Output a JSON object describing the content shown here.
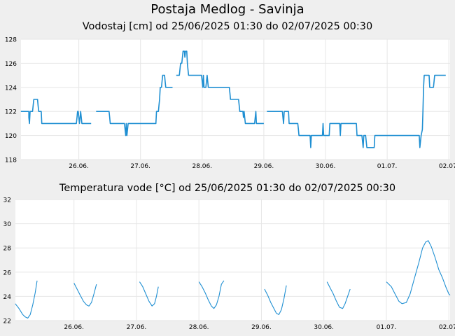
{
  "page": {
    "title": "Postaja Medlog - Savinja"
  },
  "chart_data": [
    {
      "type": "line",
      "title": "Vodostaj [cm] od 25/06/2025 01:30 do 02/07/2025 00:30",
      "xlabel": "",
      "ylabel": "",
      "x_tick_labels": [
        "26.06.",
        "27.06.",
        "28.06.",
        "29.06.",
        "30.06.",
        "01.07.",
        "02.07."
      ],
      "x_tick_days": [
        1,
        2,
        3,
        4,
        5,
        6,
        7
      ],
      "xlim_days": [
        0.0625,
        7.02
      ],
      "y_tick_labels": [
        "118",
        "120",
        "122",
        "124",
        "126",
        "128"
      ],
      "ylim": [
        118,
        128
      ],
      "color": "#1f8fd2",
      "series": [
        {
          "name": "Vodostaj",
          "segments": [
            [
              [
                0.06,
                122
              ],
              [
                0.19,
                122
              ],
              [
                0.19,
                121.5
              ],
              [
                0.2,
                121
              ],
              [
                0.21,
                122
              ],
              [
                0.25,
                122
              ],
              [
                0.26,
                122.5
              ],
              [
                0.27,
                123
              ],
              [
                0.33,
                123
              ],
              [
                0.34,
                122.5
              ],
              [
                0.35,
                122
              ],
              [
                0.39,
                122
              ],
              [
                0.4,
                121
              ],
              [
                0.49,
                121
              ],
              [
                0.5,
                121
              ],
              [
                0.96,
                121
              ],
              [
                0.97,
                121.5
              ],
              [
                0.98,
                122
              ],
              [
                0.99,
                122
              ],
              [
                1.0,
                121.5
              ],
              [
                1.01,
                121
              ],
              [
                1.02,
                121.5
              ],
              [
                1.03,
                122
              ],
              [
                1.04,
                121.5
              ],
              [
                1.05,
                121
              ],
              [
                1.2,
                121
              ]
            ],
            [
              [
                1.28,
                122
              ],
              [
                1.49,
                122
              ],
              [
                1.5,
                121.5
              ],
              [
                1.51,
                121
              ],
              [
                1.74,
                121
              ],
              [
                1.75,
                120.5
              ],
              [
                1.76,
                120
              ],
              [
                1.77,
                121
              ],
              [
                1.78,
                120
              ],
              [
                1.8,
                121
              ],
              [
                2.25,
                121
              ],
              [
                2.26,
                122
              ],
              [
                2.29,
                122
              ],
              [
                2.3,
                122.5
              ],
              [
                2.31,
                123
              ],
              [
                2.32,
                124
              ],
              [
                2.34,
                124
              ],
              [
                2.35,
                124.5
              ],
              [
                2.36,
                125
              ],
              [
                2.39,
                125
              ],
              [
                2.4,
                124.5
              ],
              [
                2.41,
                124
              ],
              [
                2.52,
                124
              ]
            ],
            [
              [
                2.58,
                125
              ],
              [
                2.63,
                125
              ],
              [
                2.64,
                125.5
              ],
              [
                2.65,
                126
              ],
              [
                2.67,
                126
              ],
              [
                2.68,
                126.5
              ],
              [
                2.69,
                127
              ],
              [
                2.71,
                127
              ],
              [
                2.72,
                126.5
              ],
              [
                2.73,
                127
              ],
              [
                2.75,
                127
              ],
              [
                2.76,
                126
              ],
              [
                2.77,
                125.5
              ],
              [
                2.78,
                125
              ],
              [
                2.99,
                125
              ],
              [
                3.0,
                124.5
              ],
              [
                3.01,
                124
              ],
              [
                3.02,
                125
              ],
              [
                3.03,
                124
              ],
              [
                3.06,
                124
              ],
              [
                3.07,
                124.5
              ],
              [
                3.08,
                125
              ],
              [
                3.1,
                124
              ],
              [
                3.44,
                124
              ],
              [
                3.45,
                123.5
              ],
              [
                3.46,
                123
              ],
              [
                3.59,
                123
              ],
              [
                3.6,
                122.5
              ],
              [
                3.61,
                122
              ],
              [
                3.66,
                122
              ],
              [
                3.67,
                121.5
              ],
              [
                3.68,
                122
              ],
              [
                3.7,
                121
              ],
              [
                3.85,
                121
              ],
              [
                3.86,
                121.5
              ],
              [
                3.87,
                122
              ],
              [
                3.88,
                121
              ],
              [
                4.0,
                121
              ]
            ],
            [
              [
                4.05,
                122
              ],
              [
                4.3,
                122
              ],
              [
                4.31,
                121.5
              ],
              [
                4.32,
                121
              ],
              [
                4.33,
                122
              ],
              [
                4.4,
                122
              ],
              [
                4.41,
                121
              ],
              [
                4.55,
                121
              ],
              [
                4.56,
                120.5
              ],
              [
                4.57,
                120
              ],
              [
                4.75,
                120
              ],
              [
                4.76,
                119
              ],
              [
                4.77,
                120
              ],
              [
                4.95,
                120
              ],
              [
                4.96,
                121
              ],
              [
                4.97,
                120
              ],
              [
                5.06,
                120
              ],
              [
                5.07,
                121
              ],
              [
                5.23,
                121
              ],
              [
                5.24,
                120
              ],
              [
                5.25,
                121
              ],
              [
                5.5,
                121
              ],
              [
                5.51,
                120
              ],
              [
                5.59,
                120
              ],
              [
                5.6,
                119.5
              ],
              [
                5.61,
                119
              ],
              [
                5.62,
                120
              ],
              [
                5.65,
                120
              ],
              [
                5.66,
                119.5
              ],
              [
                5.67,
                119
              ],
              [
                5.79,
                119
              ],
              [
                5.8,
                120
              ],
              [
                5.81,
                120
              ],
              [
                6.52,
                120
              ],
              [
                6.53,
                119
              ],
              [
                6.55,
                120
              ],
              [
                6.57,
                120.5
              ],
              [
                6.58,
                122
              ],
              [
                6.59,
                124
              ],
              [
                6.6,
                125
              ],
              [
                6.68,
                125
              ],
              [
                6.69,
                124
              ],
              [
                6.75,
                124
              ],
              [
                6.76,
                124.5
              ],
              [
                6.77,
                125
              ],
              [
                6.95,
                125
              ]
            ]
          ]
        }
      ]
    },
    {
      "type": "line",
      "title": "Temperatura vode [°C] od 25/06/2025 01:30 do 02/07/2025 00:30",
      "xlabel": "",
      "ylabel": "",
      "x_tick_labels": [
        "26.06.",
        "27.06.",
        "28.06.",
        "29.06.",
        "30.06.",
        "01.07.",
        "02.07."
      ],
      "x_tick_days": [
        1,
        2,
        3,
        4,
        5,
        6,
        7
      ],
      "xlim_days": [
        0.0625,
        7.02
      ],
      "y_tick_labels": [
        "22",
        "24",
        "26",
        "28",
        "30",
        "32"
      ],
      "ylim": [
        22,
        32
      ],
      "color": "#1f8fd2",
      "series": [
        {
          "name": "Temperatura vode",
          "segments": [
            [
              [
                0.06,
                23.4
              ],
              [
                0.12,
                23.0
              ],
              [
                0.18,
                22.5
              ],
              [
                0.22,
                22.3
              ],
              [
                0.26,
                22.2
              ],
              [
                0.3,
                22.5
              ],
              [
                0.34,
                23.3
              ],
              [
                0.38,
                24.3
              ],
              [
                0.41,
                25.3
              ]
            ],
            [
              [
                1.0,
                25.1
              ],
              [
                1.05,
                24.6
              ],
              [
                1.1,
                24.1
              ],
              [
                1.15,
                23.6
              ],
              [
                1.2,
                23.3
              ],
              [
                1.24,
                23.2
              ],
              [
                1.28,
                23.5
              ],
              [
                1.32,
                24.2
              ],
              [
                1.36,
                25.0
              ]
            ],
            [
              [
                2.05,
                25.2
              ],
              [
                2.1,
                24.8
              ],
              [
                2.15,
                24.2
              ],
              [
                2.2,
                23.6
              ],
              [
                2.25,
                23.2
              ],
              [
                2.29,
                23.4
              ],
              [
                2.32,
                24.0
              ],
              [
                2.35,
                24.8
              ]
            ],
            [
              [
                3.0,
                25.2
              ],
              [
                3.05,
                24.8
              ],
              [
                3.1,
                24.3
              ],
              [
                3.15,
                23.7
              ],
              [
                3.2,
                23.2
              ],
              [
                3.24,
                23.0
              ],
              [
                3.28,
                23.3
              ],
              [
                3.32,
                24.0
              ],
              [
                3.36,
                25.0
              ],
              [
                3.4,
                25.3
              ]
            ],
            [
              [
                4.05,
                24.6
              ],
              [
                4.1,
                24.1
              ],
              [
                4.15,
                23.5
              ],
              [
                4.2,
                23.0
              ],
              [
                4.24,
                22.6
              ],
              [
                4.28,
                22.5
              ],
              [
                4.32,
                22.9
              ],
              [
                4.36,
                23.8
              ],
              [
                4.4,
                24.9
              ]
            ],
            [
              [
                5.05,
                25.2
              ],
              [
                5.1,
                24.7
              ],
              [
                5.15,
                24.2
              ],
              [
                5.2,
                23.6
              ],
              [
                5.25,
                23.1
              ],
              [
                5.3,
                23.0
              ],
              [
                5.34,
                23.4
              ],
              [
                5.38,
                24.0
              ],
              [
                5.42,
                24.6
              ]
            ],
            [
              [
                6.0,
                25.2
              ],
              [
                6.08,
                24.8
              ],
              [
                6.15,
                24.1
              ],
              [
                6.2,
                23.6
              ],
              [
                6.25,
                23.4
              ],
              [
                6.32,
                23.5
              ],
              [
                6.38,
                24.2
              ],
              [
                6.45,
                25.5
              ],
              [
                6.52,
                26.8
              ],
              [
                6.58,
                28.0
              ],
              [
                6.63,
                28.5
              ],
              [
                6.67,
                28.6
              ],
              [
                6.72,
                28.1
              ],
              [
                6.78,
                27.2
              ],
              [
                6.84,
                26.2
              ],
              [
                6.9,
                25.5
              ],
              [
                6.95,
                24.8
              ],
              [
                7.0,
                24.2
              ],
              [
                7.02,
                24.1
              ]
            ]
          ]
        }
      ]
    }
  ]
}
